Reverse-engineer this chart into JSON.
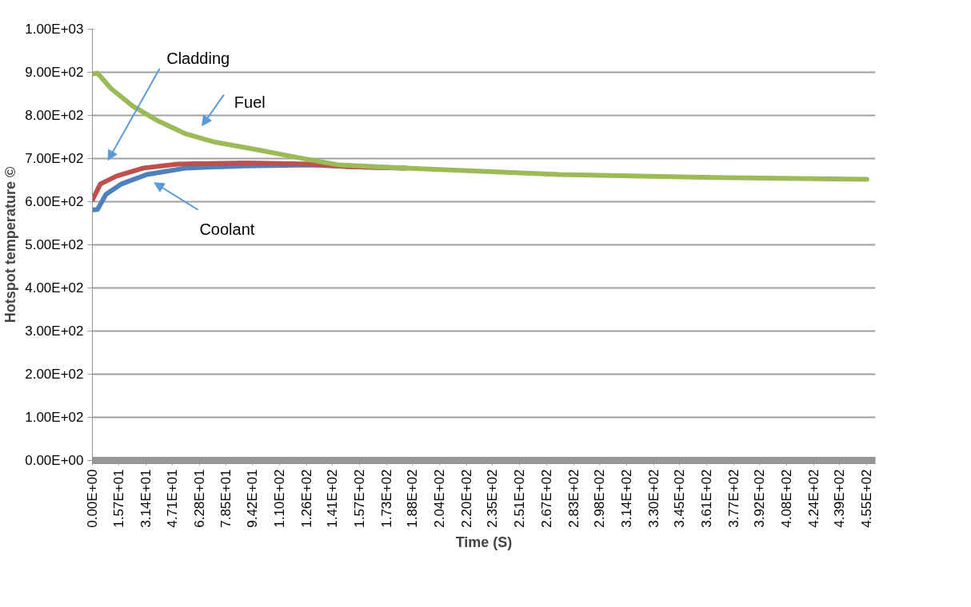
{
  "chart_data": {
    "type": "line",
    "xlabel": "Time (S)",
    "ylabel": "Hotspot temperature ©",
    "xlim": [
      0,
      460
    ],
    "ylim": [
      0,
      1000
    ],
    "xticks": [
      {
        "value": 0,
        "label": "0.00E+00"
      },
      {
        "value": 15.7,
        "label": "1.57E+01"
      },
      {
        "value": 31.4,
        "label": "3.14E+01"
      },
      {
        "value": 47.1,
        "label": "4.71E+01"
      },
      {
        "value": 62.8,
        "label": "6.28E+01"
      },
      {
        "value": 78.5,
        "label": "7.85E+01"
      },
      {
        "value": 94.2,
        "label": "9.42E+01"
      },
      {
        "value": 110,
        "label": "1.10E+02"
      },
      {
        "value": 126,
        "label": "1.26E+02"
      },
      {
        "value": 141,
        "label": "1.41E+02"
      },
      {
        "value": 157,
        "label": "1.57E+02"
      },
      {
        "value": 173,
        "label": "1.73E+02"
      },
      {
        "value": 188,
        "label": "1.88E+02"
      },
      {
        "value": 204,
        "label": "2.04E+02"
      },
      {
        "value": 220,
        "label": "2.20E+02"
      },
      {
        "value": 235,
        "label": "2.35E+02"
      },
      {
        "value": 251,
        "label": "2.51E+02"
      },
      {
        "value": 267,
        "label": "2.67E+02"
      },
      {
        "value": 283,
        "label": "2.83E+02"
      },
      {
        "value": 298,
        "label": "2.98E+02"
      },
      {
        "value": 314,
        "label": "3.14E+02"
      },
      {
        "value": 330,
        "label": "3.30E+02"
      },
      {
        "value": 345,
        "label": "3.45E+02"
      },
      {
        "value": 361,
        "label": "3.61E+02"
      },
      {
        "value": 377,
        "label": "3.77E+02"
      },
      {
        "value": 392,
        "label": "3.92E+02"
      },
      {
        "value": 408,
        "label": "4.08E+02"
      },
      {
        "value": 424,
        "label": "4.24E+02"
      },
      {
        "value": 439,
        "label": "4.39E+02"
      },
      {
        "value": 455,
        "label": "4.55E+02"
      }
    ],
    "yticks": [
      {
        "value": 0,
        "label": "0.00E+00"
      },
      {
        "value": 100,
        "label": "1.00E+02"
      },
      {
        "value": 200,
        "label": "2.00E+02"
      },
      {
        "value": 300,
        "label": "3.00E+02"
      },
      {
        "value": 400,
        "label": "4.00E+02"
      },
      {
        "value": 500,
        "label": "5.00E+02"
      },
      {
        "value": 600,
        "label": "6.00E+02"
      },
      {
        "value": 700,
        "label": "7.00E+02"
      },
      {
        "value": 800,
        "label": "8.00E+02"
      },
      {
        "value": 900,
        "label": "9.00E+02"
      },
      {
        "value": 1000,
        "label": "1.00E+03"
      }
    ],
    "grid": "y",
    "marker": "none",
    "line_style": "solid",
    "series": [
      {
        "color": "#4f81bd",
        "x": [
          0,
          3,
          8,
          17,
          32,
          55,
          90,
          129,
          152,
          184
        ],
        "values": [
          581,
          582,
          617,
          641,
          663,
          678,
          683,
          685,
          681,
          678
        ]
      },
      {
        "color": "#c0504d",
        "x": [
          0,
          4.7,
          14,
          30,
          50,
          90,
          129,
          152,
          184
        ],
        "values": [
          604,
          641,
          659,
          678,
          687,
          690,
          687,
          681,
          678
        ]
      },
      {
        "color": "#9bbb59",
        "x": [
          0,
          3,
          10.8,
          23.6,
          37.7,
          55,
          71,
          97.6,
          121,
          145,
          184,
          274,
          365,
          455
        ],
        "values": [
          896,
          898,
          863,
          822,
          789,
          757,
          739,
          720,
          702,
          685,
          678,
          663,
          656,
          652
        ]
      }
    ],
    "annotations": [
      "Cladding",
      "Fuel",
      "Coolant"
    ]
  }
}
